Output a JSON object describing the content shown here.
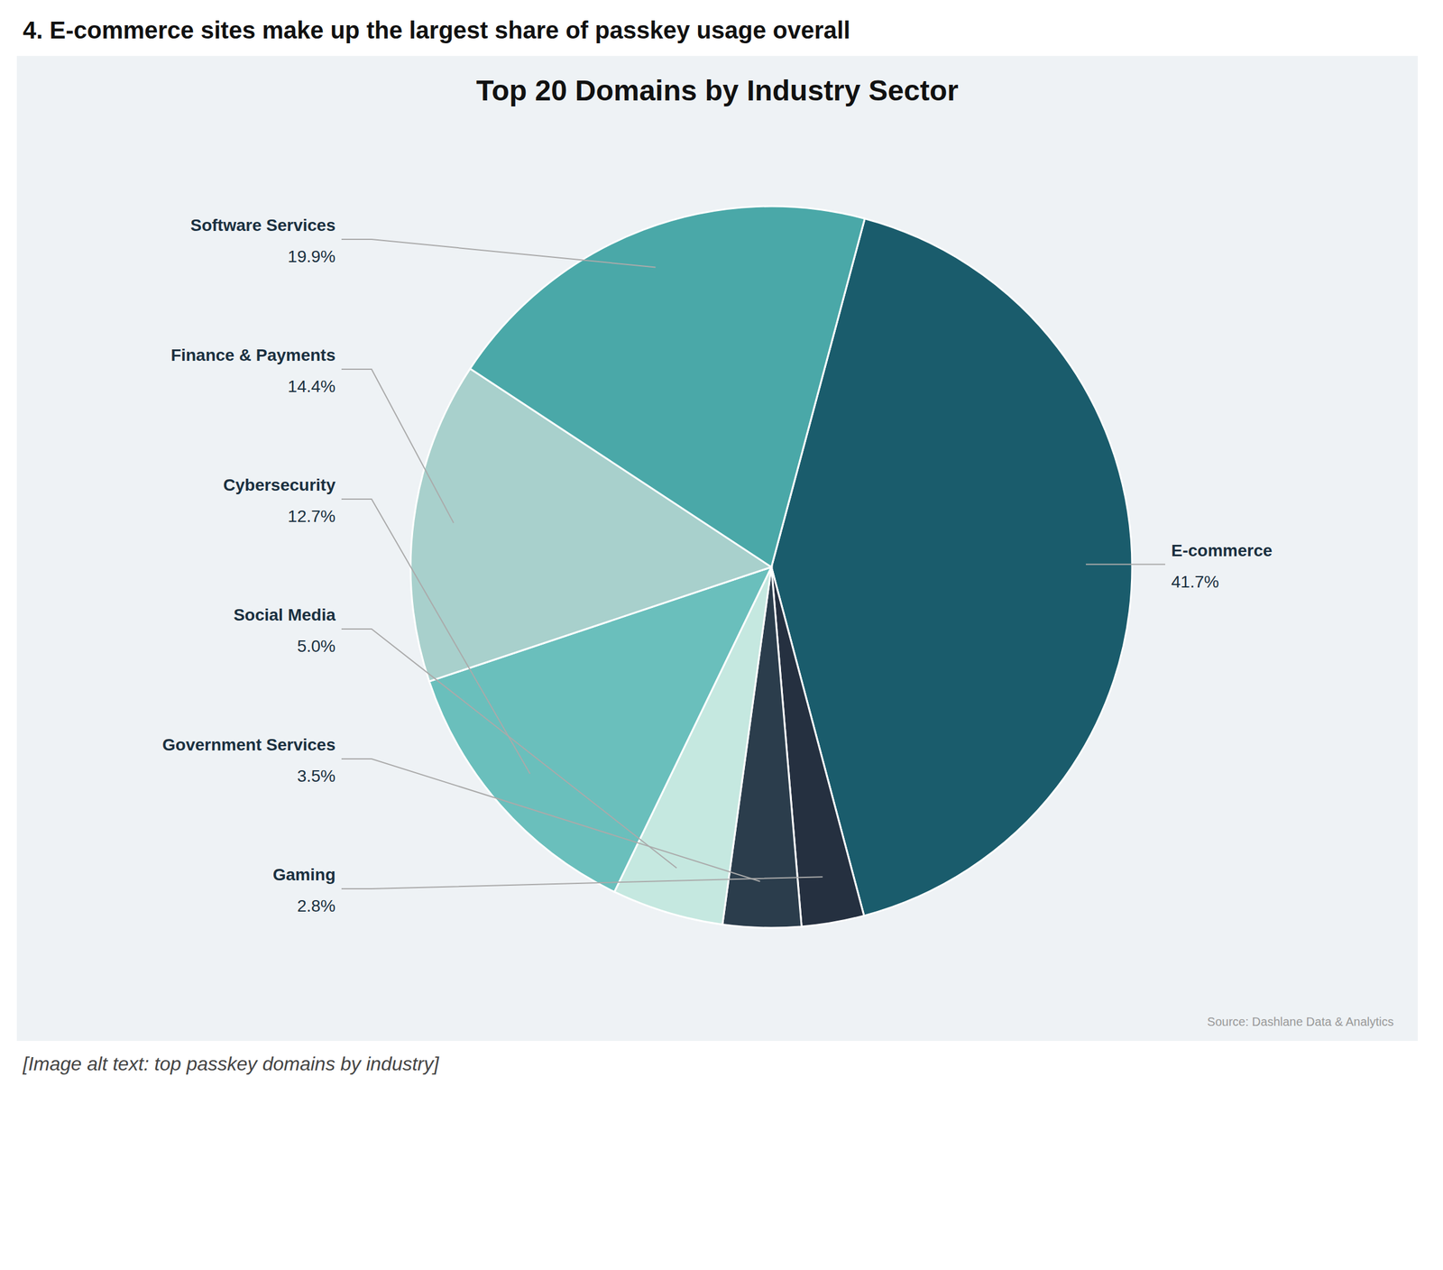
{
  "chart_data": {
    "type": "pie",
    "title": "Top 20 Domains by Industry Sector",
    "subtitle": "4. E-commerce sites make up the largest share of passkey usage overall",
    "annotations": [
      "[Image alt text: top passkey domains by industry]",
      "Source: Dashlane Data & Analytics"
    ],
    "categories": [
      "E-commerce",
      "Gaming",
      "Government Services",
      "Social Media",
      "Cybersecurity",
      "Finance & Payments",
      "Software Services"
    ],
    "values": [
      41.7,
      2.8,
      3.5,
      5.0,
      12.7,
      14.4,
      19.9
    ],
    "value_labels": [
      "41.7%",
      "2.8%",
      "3.5%",
      "5.0%",
      "12.7%",
      "14.4%",
      "19.9%"
    ],
    "colors": [
      "#1a5c6c",
      "#253040",
      "#2b3d4c",
      "#c5e8e0",
      "#6abfbc",
      "#a8d0cc",
      "#4aa8a8"
    ],
    "data_labels": true
  }
}
